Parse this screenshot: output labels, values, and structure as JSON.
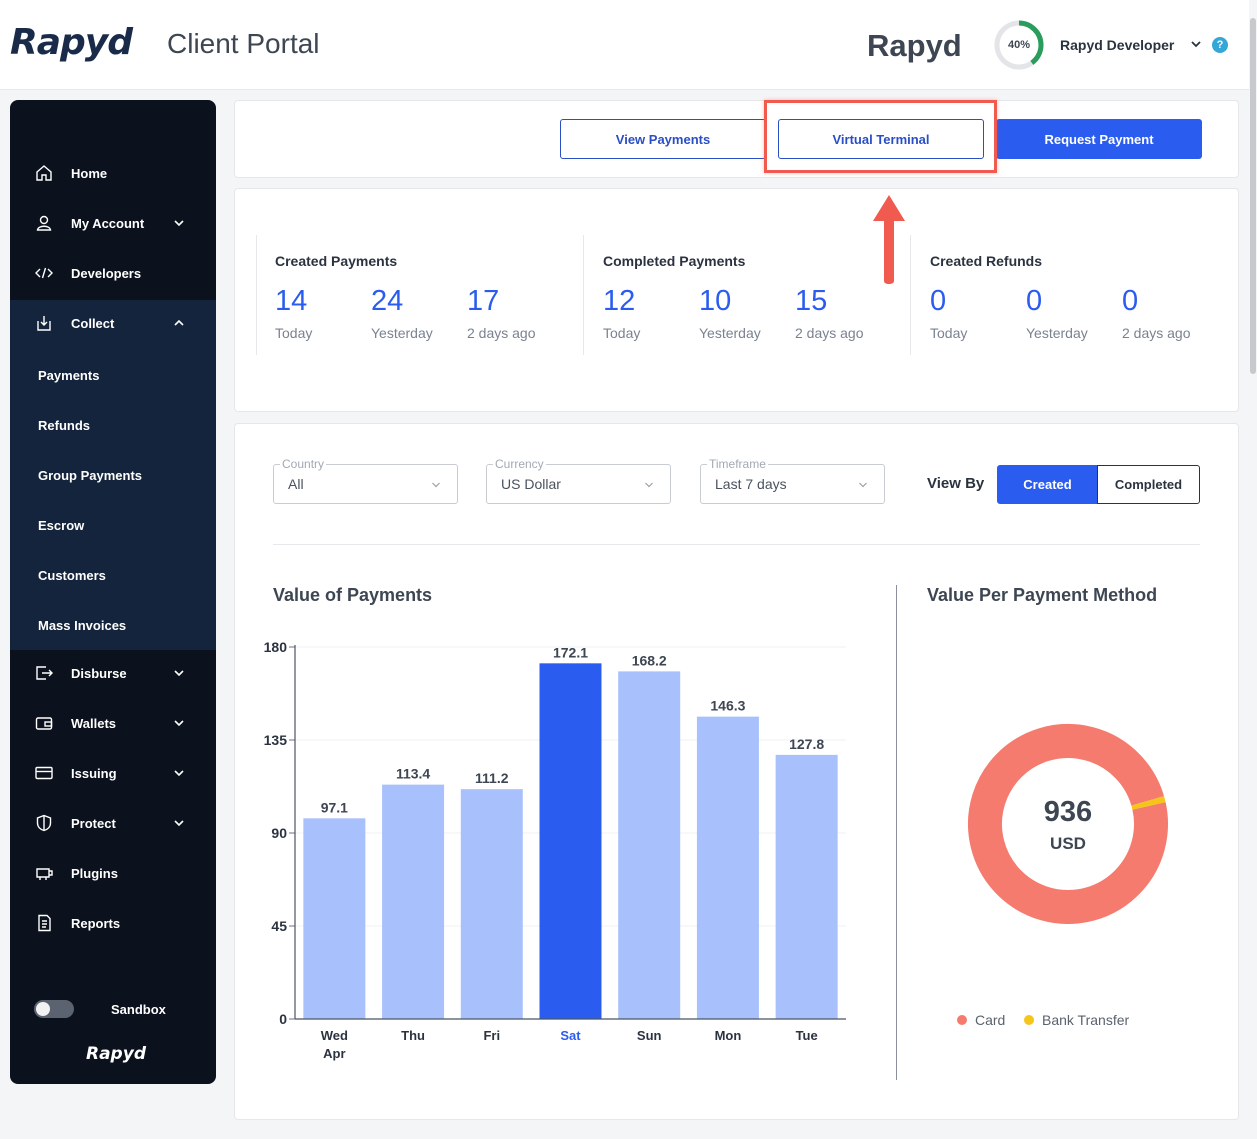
{
  "header": {
    "logo": "Rapyd",
    "portal_title": "Client Portal",
    "brand": "Rapyd",
    "progress": "40%",
    "progress_value": 0.4,
    "user_name": "Rapyd Developer",
    "help": "?"
  },
  "sidebar": {
    "items": [
      {
        "label": "Home",
        "icon": "home-icon"
      },
      {
        "label": "My Account",
        "icon": "user-icon"
      },
      {
        "label": "Developers",
        "icon": "code-icon"
      },
      {
        "label": "Collect",
        "icon": "collect-icon"
      },
      {
        "label": "Disburse",
        "icon": "disburse-icon"
      },
      {
        "label": "Wallets",
        "icon": "wallet-icon"
      },
      {
        "label": "Issuing",
        "icon": "card-icon"
      },
      {
        "label": "Protect",
        "icon": "shield-icon"
      },
      {
        "label": "Plugins",
        "icon": "plugin-icon"
      },
      {
        "label": "Reports",
        "icon": "report-icon"
      }
    ],
    "collect_sub": [
      "Payments",
      "Refunds",
      "Group Payments",
      "Escrow",
      "Customers",
      "Mass Invoices"
    ],
    "sandbox_label": "Sandbox",
    "footer_logo": "Rapyd"
  },
  "actions": {
    "view_payments": "View Payments",
    "virtual_terminal": "Virtual Terminal",
    "request_payment": "Request Payment"
  },
  "stats": [
    {
      "title": "Created Payments",
      "values": [
        {
          "num": "14",
          "label": "Today"
        },
        {
          "num": "24",
          "label": "Yesterday"
        },
        {
          "num": "17",
          "label": "2 days ago"
        }
      ]
    },
    {
      "title": "Completed Payments",
      "values": [
        {
          "num": "12",
          "label": "Today"
        },
        {
          "num": "10",
          "label": "Yesterday"
        },
        {
          "num": "15",
          "label": "2 days ago"
        }
      ]
    },
    {
      "title": "Created Refunds",
      "values": [
        {
          "num": "0",
          "label": "Today"
        },
        {
          "num": "0",
          "label": "Yesterday"
        },
        {
          "num": "0",
          "label": "2 days ago"
        }
      ]
    }
  ],
  "filters": {
    "country": {
      "label": "Country",
      "value": "All"
    },
    "currency": {
      "label": "Currency",
      "value": "US Dollar"
    },
    "timeframe": {
      "label": "Timeframe",
      "value": "Last 7 days"
    },
    "view_by_label": "View By",
    "view_by_options": [
      "Created",
      "Completed"
    ],
    "view_by_selected": "Created"
  },
  "charts_titles": {
    "payments": "Value of Payments",
    "method": "Value Per Payment Method"
  },
  "donut": {
    "value": "936",
    "unit": "USD",
    "legend": [
      {
        "name": "Card",
        "color": "#f47b6e"
      },
      {
        "name": "Bank Transfer",
        "color": "#f5c518"
      }
    ]
  },
  "chart_data": [
    {
      "type": "bar",
      "title": "Value of Payments",
      "categories": [
        "Wed",
        "Thu",
        "Fri",
        "Sat",
        "Sun",
        "Mon",
        "Tue"
      ],
      "category_sublabels": [
        "Apr",
        "",
        "",
        "",
        "",
        "",
        ""
      ],
      "values": [
        97.1,
        113.4,
        111.2,
        172.1,
        168.2,
        146.3,
        127.8
      ],
      "highlighted": "Sat",
      "ylim": [
        0,
        180
      ],
      "yticks": [
        0,
        45,
        90,
        135,
        180
      ],
      "colors": {
        "bar": "#a8c0fb",
        "highlight": "#2a5cf0"
      },
      "grid": true
    },
    {
      "type": "pie",
      "title": "Value Per Payment Method",
      "categories": [
        "Card",
        "Bank Transfer"
      ],
      "values": [
        0.99,
        0.01
      ],
      "colors": [
        "#f47b6e",
        "#f5c518"
      ]
    }
  ]
}
